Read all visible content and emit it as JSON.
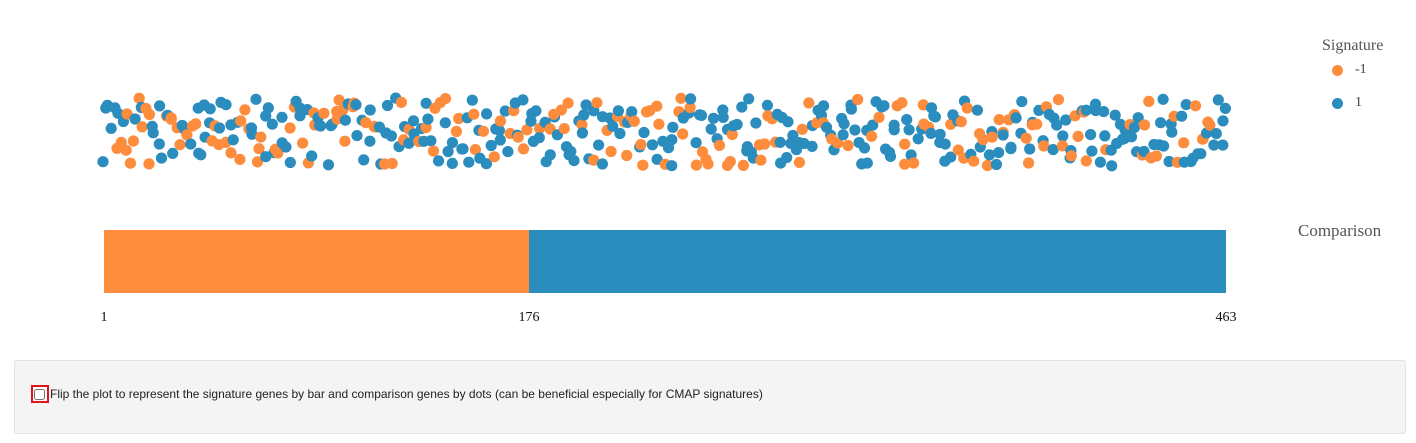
{
  "chart_data": {
    "type": "scatter",
    "legend": {
      "title": "Signature",
      "entries": [
        {
          "label": "-1",
          "color": "#fd8d3c"
        },
        {
          "label": "1",
          "color": "#2b8cbe"
        }
      ],
      "position": "top-right"
    },
    "bar": {
      "label": "Comparison",
      "segments": [
        {
          "from": 1,
          "to": 176,
          "color": "#fd8d3c"
        },
        {
          "from": 176,
          "to": 463,
          "color": "#2b8cbe"
        }
      ]
    },
    "x_ticks": [
      "1",
      "176",
      "463"
    ],
    "xlim": [
      1,
      463
    ],
    "n_points": 463,
    "series": [
      {
        "name": "-1",
        "color": "#fd8d3c",
        "count": 176
      },
      {
        "name": "1",
        "color": "#2b8cbe",
        "count": 287
      }
    ],
    "grid": false
  },
  "options": {
    "flip_label": "Flip the plot to represent the signature genes by bar and comparison genes by dots (can be beneficial especially for CMAP signatures)",
    "flip_checked": false
  }
}
